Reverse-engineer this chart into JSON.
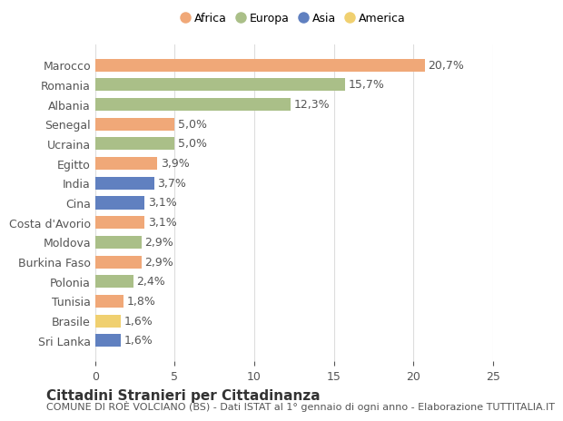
{
  "countries": [
    "Marocco",
    "Romania",
    "Albania",
    "Senegal",
    "Ucraina",
    "Egitto",
    "India",
    "Cina",
    "Costa d'Avorio",
    "Moldova",
    "Burkina Faso",
    "Polonia",
    "Tunisia",
    "Brasile",
    "Sri Lanka"
  ],
  "values": [
    20.7,
    15.7,
    12.3,
    5.0,
    5.0,
    3.9,
    3.7,
    3.1,
    3.1,
    2.9,
    2.9,
    2.4,
    1.8,
    1.6,
    1.6
  ],
  "labels": [
    "20,7%",
    "15,7%",
    "12,3%",
    "5,0%",
    "5,0%",
    "3,9%",
    "3,7%",
    "3,1%",
    "3,1%",
    "2,9%",
    "2,9%",
    "2,4%",
    "1,8%",
    "1,6%",
    "1,6%"
  ],
  "continents": [
    "Africa",
    "Europa",
    "Europa",
    "Africa",
    "Europa",
    "Africa",
    "Asia",
    "Asia",
    "Africa",
    "Europa",
    "Africa",
    "Europa",
    "Africa",
    "America",
    "Asia"
  ],
  "colors": {
    "Africa": "#F0A878",
    "Europa": "#AABF88",
    "Asia": "#6080C0",
    "America": "#F0D070"
  },
  "legend_order": [
    "Africa",
    "Europa",
    "Asia",
    "America"
  ],
  "title1": "Cittadini Stranieri per Cittadinanza",
  "title2": "COMUNE DI ROÈ VOLCIANO (BS) - Dati ISTAT al 1° gennaio di ogni anno - Elaborazione TUTTITALIA.IT",
  "xlim": [
    0,
    25
  ],
  "xticks": [
    0,
    5,
    10,
    15,
    20,
    25
  ],
  "background_color": "#ffffff",
  "grid_color": "#dddddd",
  "bar_height": 0.65,
  "label_fontsize": 9,
  "tick_fontsize": 9,
  "title1_fontsize": 11,
  "title2_fontsize": 8
}
